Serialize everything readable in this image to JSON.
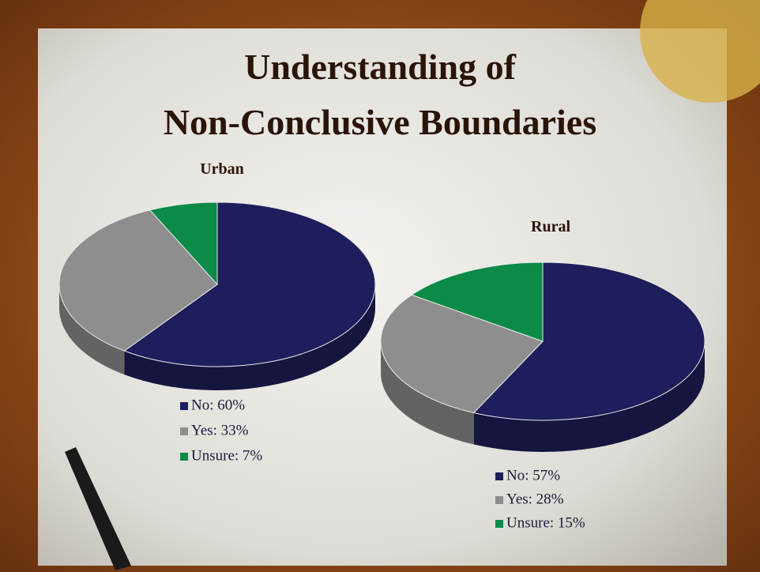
{
  "slide": {
    "title_lines": [
      "Understanding of",
      "Non-Conclusive Boundaries"
    ]
  },
  "chart_data": [
    {
      "type": "pie",
      "title": "Urban",
      "categories": [
        "No: 60%",
        "Yes: 33%",
        "Unsure: 7%"
      ],
      "values": [
        60,
        33,
        7
      ],
      "colors": [
        "#1e1e5c",
        "#8e8e8e",
        "#0b8a48"
      ]
    },
    {
      "type": "pie",
      "title": "Rural",
      "categories": [
        "No: 57%",
        "Yes: 28%",
        "Unsure: 15%"
      ],
      "values": [
        57,
        28,
        15
      ],
      "colors": [
        "#1e1e5c",
        "#8e8e8e",
        "#0b8a48"
      ]
    }
  ]
}
